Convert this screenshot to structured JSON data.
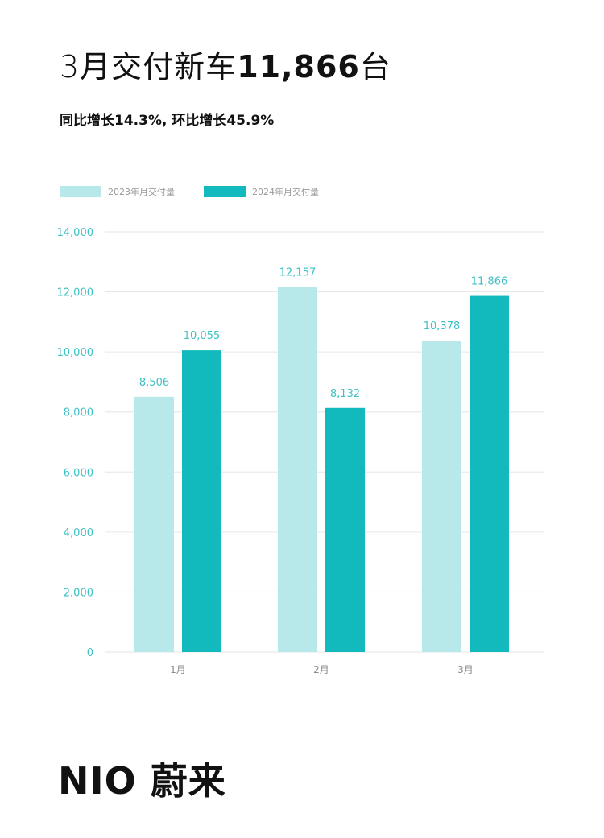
{
  "headline": {
    "prefix": "3月交付新车",
    "number": "11,866",
    "suffix": "台"
  },
  "subheadline": "同比增长14.3%, 环比增长45.9%",
  "brand": "NIO 蔚来",
  "chart_data": {
    "type": "bar",
    "categories": [
      "1月",
      "2月",
      "3月"
    ],
    "series": [
      {
        "name": "2023年月交付量",
        "values": [
          8506,
          12157,
          10378
        ],
        "labels": [
          "8,506",
          "12,157",
          "10,378"
        ],
        "color": "#b8e9ea"
      },
      {
        "name": "2024年月交付量",
        "values": [
          10055,
          8132,
          11866
        ],
        "labels": [
          "10,055",
          "8,132",
          "11,866"
        ],
        "color": "#13babd"
      }
    ],
    "ylim": [
      0,
      14000
    ],
    "yticks": [
      0,
      2000,
      4000,
      6000,
      8000,
      10000,
      12000,
      14000
    ],
    "ytick_labels": [
      "0",
      "2,000",
      "4,000",
      "6,000",
      "8,000",
      "10,000",
      "12,000",
      "14,000"
    ],
    "grid": true,
    "legend_position": "top-left",
    "gridline_color": "#e6e6e6",
    "tick_color": "#3fc1c4"
  }
}
